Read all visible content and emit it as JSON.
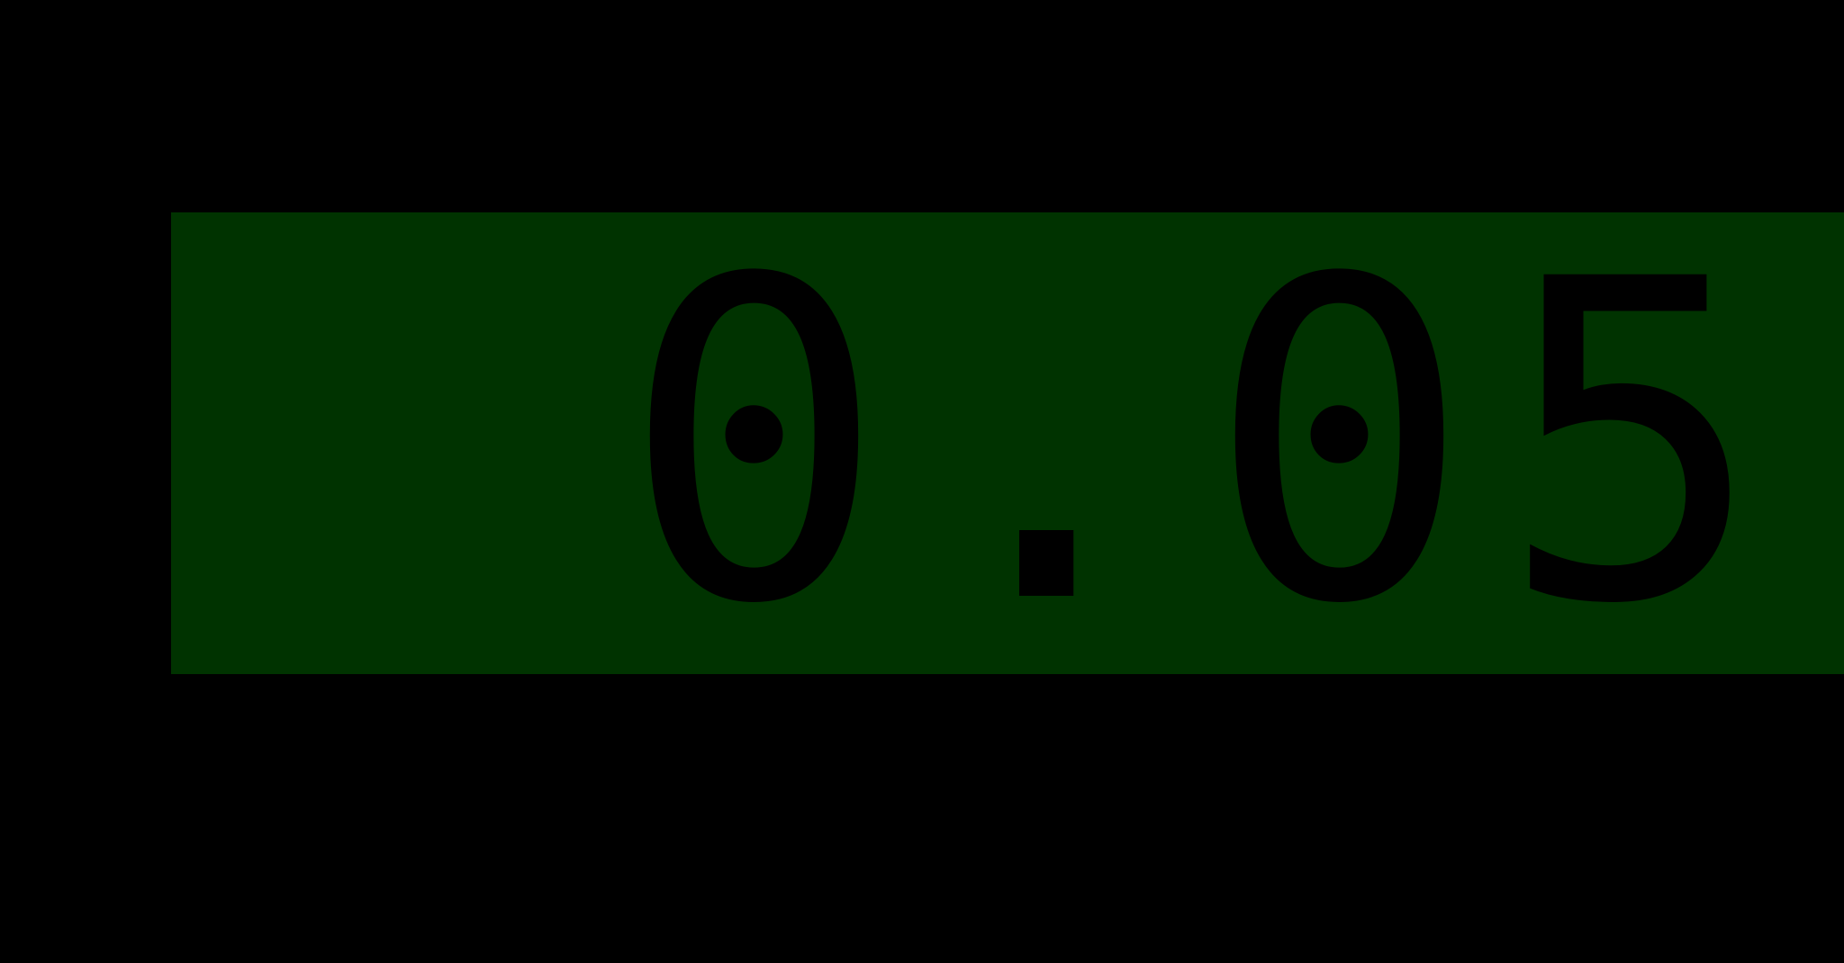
{
  "readout": {
    "value": "0.05",
    "background_color": "#003300",
    "text_color": "#000000"
  },
  "screen": {
    "background_color": "#000000"
  }
}
